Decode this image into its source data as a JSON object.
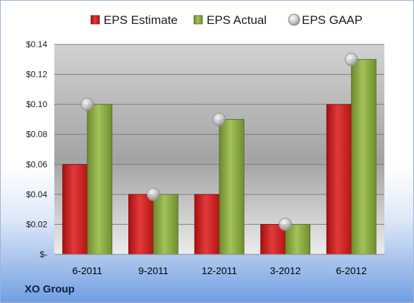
{
  "chart_data": {
    "type": "bar",
    "categories": [
      "6-2011",
      "9-2011",
      "12-2011",
      "3-2012",
      "6-2012"
    ],
    "series": [
      {
        "name": "EPS Estimate",
        "type": "bar",
        "color": "#cc1f1f",
        "values": [
          0.06,
          0.04,
          0.04,
          0.02,
          0.1
        ]
      },
      {
        "name": "EPS Actual",
        "type": "bar",
        "color": "#8bab43",
        "values": [
          0.1,
          0.04,
          0.09,
          0.02,
          0.13
        ]
      },
      {
        "name": "EPS GAAP",
        "type": "marker",
        "color": "#b4b4b4",
        "values": [
          0.1,
          0.04,
          0.09,
          0.02,
          0.13
        ]
      }
    ],
    "ylim": [
      0,
      0.14
    ],
    "yticks": [
      0,
      0.02,
      0.04,
      0.06,
      0.08,
      0.1,
      0.12,
      0.14
    ],
    "ytick_labels": [
      "$-",
      "$0.02",
      "$0.04",
      "$0.06",
      "$0.08",
      "$0.10",
      "$0.12",
      "$0.14"
    ],
    "grid": true,
    "legend_position": "top"
  },
  "company": "XO Group"
}
